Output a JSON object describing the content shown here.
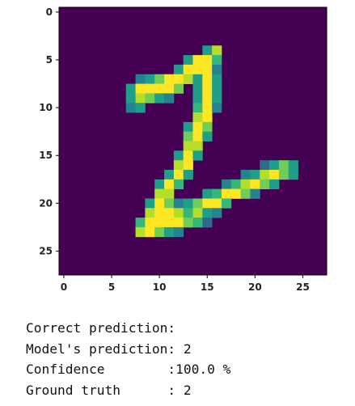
{
  "colors": {
    "background": "#440154",
    "colormap": [
      "#440154",
      "#482878",
      "#3e4989",
      "#31688e",
      "#26828e",
      "#1f9e89",
      "#35b779",
      "#6ece58",
      "#b5de2b",
      "#fde725"
    ]
  },
  "chart_data": {
    "type": "heatmap",
    "colormap": "viridis",
    "shape": [
      28,
      28
    ],
    "x_ticks": [
      "0",
      "5",
      "10",
      "15",
      "20",
      "25"
    ],
    "y_ticks": [
      "0",
      "5",
      "10",
      "15",
      "20",
      "25"
    ],
    "x_tick_values": [
      0,
      5,
      10,
      15,
      20,
      25
    ],
    "y_tick_values": [
      0,
      5,
      10,
      15,
      20,
      25
    ],
    "xlim": [
      -0.5,
      27.5
    ],
    "ylim": [
      27.5,
      -0.5
    ],
    "pixels": [
      [
        4,
        15,
        0.5
      ],
      [
        4,
        16,
        0.85
      ],
      [
        5,
        13,
        0.55
      ],
      [
        5,
        14,
        0.95
      ],
      [
        5,
        15,
        1.0
      ],
      [
        5,
        16,
        0.7
      ],
      [
        6,
        12,
        0.6
      ],
      [
        6,
        13,
        1.0
      ],
      [
        6,
        14,
        1.0
      ],
      [
        6,
        15,
        1.0
      ],
      [
        6,
        16,
        0.45
      ],
      [
        7,
        8,
        0.4
      ],
      [
        7,
        9,
        0.55
      ],
      [
        7,
        10,
        0.75
      ],
      [
        7,
        11,
        0.95
      ],
      [
        7,
        12,
        1.0
      ],
      [
        7,
        13,
        0.85
      ],
      [
        7,
        14,
        0.6
      ],
      [
        7,
        15,
        1.0
      ],
      [
        7,
        16,
        0.55
      ],
      [
        8,
        7,
        0.5
      ],
      [
        8,
        8,
        1.0
      ],
      [
        8,
        9,
        1.0
      ],
      [
        8,
        10,
        1.0
      ],
      [
        8,
        11,
        1.0
      ],
      [
        8,
        12,
        0.8
      ],
      [
        8,
        14,
        0.5
      ],
      [
        8,
        15,
        1.0
      ],
      [
        8,
        16,
        0.5
      ],
      [
        9,
        7,
        0.55
      ],
      [
        9,
        8,
        0.9
      ],
      [
        9,
        9,
        0.8
      ],
      [
        9,
        10,
        0.6
      ],
      [
        9,
        11,
        0.45
      ],
      [
        9,
        14,
        0.6
      ],
      [
        9,
        15,
        1.0
      ],
      [
        9,
        16,
        0.5
      ],
      [
        10,
        7,
        0.4
      ],
      [
        10,
        8,
        0.55
      ],
      [
        10,
        14,
        0.7
      ],
      [
        10,
        15,
        1.0
      ],
      [
        10,
        16,
        0.45
      ],
      [
        11,
        14,
        0.85
      ],
      [
        11,
        15,
        0.95
      ],
      [
        12,
        13,
        0.55
      ],
      [
        12,
        14,
        1.0
      ],
      [
        12,
        15,
        0.75
      ],
      [
        13,
        13,
        0.75
      ],
      [
        13,
        14,
        1.0
      ],
      [
        13,
        15,
        0.5
      ],
      [
        14,
        13,
        0.85
      ],
      [
        14,
        14,
        0.9
      ],
      [
        15,
        12,
        0.6
      ],
      [
        15,
        13,
        1.0
      ],
      [
        15,
        14,
        0.6
      ],
      [
        16,
        12,
        0.85
      ],
      [
        16,
        13,
        0.95
      ],
      [
        16,
        21,
        0.35
      ],
      [
        16,
        22,
        0.5
      ],
      [
        16,
        23,
        0.75
      ],
      [
        16,
        24,
        0.6
      ],
      [
        17,
        11,
        0.6
      ],
      [
        17,
        12,
        1.0
      ],
      [
        17,
        13,
        0.5
      ],
      [
        17,
        19,
        0.4
      ],
      [
        17,
        20,
        0.6
      ],
      [
        17,
        21,
        0.85
      ],
      [
        17,
        22,
        1.0
      ],
      [
        17,
        23,
        0.8
      ],
      [
        17,
        24,
        0.5
      ],
      [
        18,
        10,
        0.55
      ],
      [
        18,
        11,
        1.0
      ],
      [
        18,
        12,
        0.65
      ],
      [
        18,
        17,
        0.45
      ],
      [
        18,
        18,
        0.65
      ],
      [
        18,
        19,
        0.9
      ],
      [
        18,
        20,
        1.0
      ],
      [
        18,
        21,
        0.8
      ],
      [
        18,
        22,
        0.5
      ],
      [
        19,
        10,
        0.85
      ],
      [
        19,
        11,
        0.9
      ],
      [
        19,
        15,
        0.5
      ],
      [
        19,
        16,
        0.7
      ],
      [
        19,
        17,
        1.0
      ],
      [
        19,
        18,
        1.0
      ],
      [
        19,
        19,
        0.75
      ],
      [
        19,
        20,
        0.4
      ],
      [
        20,
        9,
        0.6
      ],
      [
        20,
        10,
        1.0
      ],
      [
        20,
        11,
        0.75
      ],
      [
        20,
        12,
        0.45
      ],
      [
        20,
        13,
        0.55
      ],
      [
        20,
        14,
        0.8
      ],
      [
        20,
        15,
        1.0
      ],
      [
        20,
        16,
        1.0
      ],
      [
        20,
        17,
        0.7
      ],
      [
        21,
        9,
        0.85
      ],
      [
        21,
        10,
        1.0
      ],
      [
        21,
        11,
        1.0
      ],
      [
        21,
        12,
        0.85
      ],
      [
        21,
        13,
        0.7
      ],
      [
        21,
        14,
        0.9
      ],
      [
        21,
        15,
        0.55
      ],
      [
        21,
        16,
        0.4
      ],
      [
        22,
        8,
        0.7
      ],
      [
        22,
        9,
        1.0
      ],
      [
        22,
        10,
        0.95
      ],
      [
        22,
        11,
        1.0
      ],
      [
        22,
        12,
        1.0
      ],
      [
        22,
        13,
        0.75
      ],
      [
        22,
        14,
        0.65
      ],
      [
        22,
        15,
        0.35
      ],
      [
        23,
        8,
        0.9
      ],
      [
        23,
        9,
        1.0
      ],
      [
        23,
        10,
        0.8
      ],
      [
        23,
        11,
        0.55
      ],
      [
        23,
        12,
        0.4
      ]
    ]
  },
  "output": {
    "lines": [
      "Correct prediction:",
      "Model's prediction: 2",
      "Confidence        :100.0 %",
      "Ground truth      : 2"
    ]
  }
}
